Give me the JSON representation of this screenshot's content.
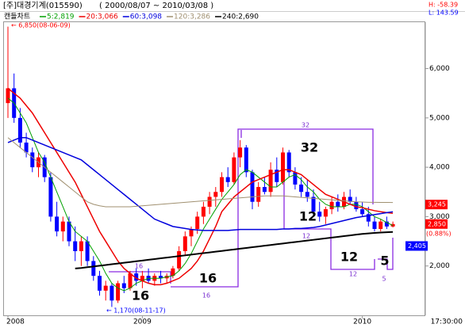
{
  "chart_data": {
    "type": "candlestick",
    "title": "[주]대경기계(015590)",
    "date_range": "( 2000/08/07 ~ 2010/03/08 )",
    "chart_label": "캔들차트",
    "stat_high": "H: -58.39",
    "stat_low": "L: 143.59",
    "time_label": "17:30:00",
    "max_note": "← 6,850(08-06-09)",
    "min_note": "← 1,170(08-11-17)",
    "up_color": "#ff0000",
    "down_color": "#0000ff",
    "categories": [
      "2008",
      null,
      null,
      null,
      null,
      null,
      null,
      null,
      null,
      null,
      null,
      null,
      null,
      null,
      null,
      null,
      null,
      null,
      null,
      null,
      null,
      null,
      "2009",
      null,
      null,
      null,
      null,
      null,
      null,
      null,
      null,
      null,
      null,
      null,
      null,
      null,
      null,
      null,
      null,
      null,
      null,
      null,
      null,
      null,
      null,
      null,
      null,
      null,
      null,
      null,
      null,
      null,
      null,
      null,
      null,
      null,
      null,
      null,
      "2010",
      null,
      null,
      null,
      null,
      null
    ],
    "open": [
      5300,
      5600,
      5000,
      4500,
      4300,
      4000,
      4200,
      3800,
      3000,
      2700,
      2900,
      2500,
      2300,
      2500,
      2100,
      1800,
      1500,
      1600,
      1300,
      1650,
      1550,
      1850,
      1700,
      1800,
      1700,
      1800,
      1750,
      1800,
      1950,
      2300,
      2600,
      2750,
      3000,
      3200,
      3400,
      3500,
      3800,
      3700,
      4200,
      4400,
      3900,
      3300,
      3600,
      3500,
      3950,
      3700,
      4300,
      3900,
      3650,
      3500,
      3400,
      3100,
      3000,
      3150,
      3300,
      3200,
      3400,
      3300,
      3150,
      3050,
      2900,
      2750,
      2900,
      2800
    ],
    "high": [
      6850,
      5900,
      5200,
      4700,
      4400,
      4300,
      4250,
      3900,
      3300,
      3000,
      3000,
      2800,
      2600,
      2600,
      2200,
      1900,
      1700,
      1650,
      1700,
      1800,
      1900,
      1950,
      1900,
      1950,
      1850,
      1900,
      1850,
      2000,
      2400,
      2700,
      2800,
      3100,
      3300,
      3500,
      3600,
      3900,
      4000,
      4300,
      4550,
      4450,
      3950,
      3700,
      3800,
      4100,
      4200,
      4400,
      4350,
      4000,
      3800,
      3750,
      3550,
      3300,
      3200,
      3400,
      3450,
      3500,
      3550,
      3400,
      3300,
      3200,
      3000,
      2950,
      3000,
      2900
    ],
    "low": [
      5000,
      4900,
      4400,
      4200,
      3900,
      3800,
      3700,
      2900,
      2600,
      2500,
      2400,
      2100,
      2000,
      2000,
      1700,
      1400,
      1300,
      1170,
      1250,
      1450,
      1500,
      1600,
      1550,
      1650,
      1600,
      1650,
      1650,
      1750,
      1900,
      2200,
      2400,
      2650,
      2850,
      3050,
      3200,
      3400,
      3600,
      3650,
      4000,
      3800,
      3150,
      3200,
      3450,
      3400,
      3600,
      3650,
      3800,
      3550,
      3400,
      3300,
      3000,
      2900,
      2850,
      3050,
      3100,
      3150,
      3250,
      3100,
      3000,
      2800,
      2700,
      2700,
      2750,
      2780
    ],
    "close": [
      5600,
      5000,
      4500,
      4300,
      4000,
      4200,
      3800,
      3000,
      2700,
      2900,
      2500,
      2300,
      2500,
      2100,
      1800,
      1500,
      1600,
      1300,
      1650,
      1550,
      1850,
      1700,
      1800,
      1700,
      1800,
      1750,
      1800,
      1950,
      2300,
      2600,
      2750,
      3000,
      3200,
      3400,
      3500,
      3800,
      3700,
      4200,
      4400,
      3900,
      3300,
      3600,
      3500,
      3950,
      3700,
      4300,
      3900,
      3650,
      3500,
      3400,
      3100,
      3000,
      3150,
      3300,
      3200,
      3400,
      3300,
      3150,
      3050,
      2900,
      2750,
      2900,
      2800,
      2850
    ],
    "series": [
      {
        "name": "5:2,819",
        "color": "#00a000",
        "width": 1,
        "values": [
          5400,
          5300,
          5100,
          4900,
          4600,
          4300,
          4100,
          3800,
          3500,
          3200,
          2900,
          2700,
          2600,
          2500,
          2300,
          2100,
          1850,
          1650,
          1550,
          1500,
          1550,
          1650,
          1700,
          1750,
          1750,
          1750,
          1780,
          1800,
          1900,
          2050,
          2250,
          2500,
          2750,
          2950,
          3150,
          3350,
          3500,
          3650,
          3850,
          3950,
          3900,
          3800,
          3700,
          3600,
          3600,
          3700,
          3800,
          3850,
          3750,
          3600,
          3500,
          3350,
          3250,
          3200,
          3200,
          3200,
          3250,
          3250,
          3200,
          3100,
          3000,
          2950,
          2880,
          2819
        ]
      },
      {
        "name": "20:3,066",
        "color": "#ee0000",
        "width": 1.5,
        "values": [
          5600,
          5500,
          5400,
          5250,
          5100,
          4900,
          4700,
          4500,
          4300,
          4100,
          3900,
          3700,
          3450,
          3200,
          2950,
          2700,
          2500,
          2300,
          2100,
          1950,
          1850,
          1750,
          1700,
          1650,
          1620,
          1620,
          1650,
          1700,
          1750,
          1850,
          1950,
          2100,
          2300,
          2550,
          2800,
          3100,
          3250,
          3400,
          3500,
          3600,
          3700,
          3750,
          3800,
          3850,
          3900,
          3950,
          3950,
          3900,
          3850,
          3750,
          3650,
          3550,
          3450,
          3400,
          3350,
          3300,
          3250,
          3200,
          3180,
          3150,
          3120,
          3100,
          3080,
          3066
        ]
      },
      {
        "name": "60:3,098",
        "color": "#0000dd",
        "width": 1.5,
        "values": [
          4500,
          4550,
          4600,
          4600,
          4550,
          4500,
          4450,
          4400,
          4350,
          4300,
          4250,
          4200,
          4150,
          4050,
          3950,
          3850,
          3750,
          3650,
          3550,
          3450,
          3350,
          3250,
          3150,
          3050,
          2950,
          2900,
          2850,
          2800,
          2780,
          2760,
          2740,
          2730,
          2720,
          2720,
          2720,
          2720,
          2720,
          2730,
          2740,
          2740,
          2740,
          2740,
          2740,
          2740,
          2740,
          2750,
          2750,
          2760,
          2760,
          2770,
          2780,
          2800,
          2830,
          2860,
          2890,
          2920,
          2950,
          2980,
          3000,
          3020,
          3040,
          3060,
          3080,
          3098
        ]
      },
      {
        "name": "120:3,286",
        "color": "#a09070",
        "width": 1,
        "values": [
          4600,
          4500,
          4400,
          4300,
          4200,
          4100,
          4000,
          3900,
          3800,
          3700,
          3600,
          3500,
          3400,
          3300,
          3250,
          3220,
          3200,
          3200,
          3200,
          3200,
          3200,
          3210,
          3220,
          3230,
          3240,
          3250,
          3260,
          3270,
          3280,
          3290,
          3300,
          3310,
          3320,
          3330,
          3340,
          3350,
          3360,
          3370,
          3380,
          3390,
          3400,
          3410,
          3420,
          3420,
          3420,
          3420,
          3410,
          3400,
          3390,
          3380,
          3370,
          3360,
          3350,
          3340,
          3330,
          3320,
          3310,
          3300,
          3295,
          3290,
          3290,
          3288,
          3287,
          3286
        ]
      },
      {
        "name": "240:2,690",
        "color": "#000000",
        "width": 2,
        "values": [
          null,
          null,
          null,
          null,
          null,
          null,
          null,
          null,
          null,
          null,
          null,
          1950,
          1960,
          1975,
          1990,
          2005,
          2020,
          2035,
          2050,
          2065,
          2080,
          2095,
          2110,
          2125,
          2140,
          2155,
          2170,
          2185,
          2200,
          2215,
          2230,
          2245,
          2260,
          2275,
          2290,
          2305,
          2320,
          2335,
          2350,
          2365,
          2380,
          2395,
          2410,
          2425,
          2440,
          2455,
          2470,
          2485,
          2500,
          2515,
          2530,
          2545,
          2560,
          2575,
          2590,
          2605,
          2620,
          2635,
          2650,
          2660,
          2670,
          2678,
          2684,
          2690
        ]
      }
    ],
    "ylim": [
      1000,
      7100
    ],
    "yticks": [
      {
        "value": 2000,
        "label": "2,000"
      },
      {
        "value": 3000,
        "label": "3,000"
      },
      {
        "value": 4000,
        "label": "4,000"
      },
      {
        "value": 5000,
        "label": "5,000"
      },
      {
        "value": 6000,
        "label": "6,000"
      }
    ],
    "grid": false,
    "price_tags": [
      {
        "value": 3245,
        "label": "3,245",
        "color": "#ff0000"
      },
      {
        "value": 2850,
        "label": "2,850",
        "color": "#ff0000"
      },
      {
        "value": 2405,
        "label": "2,405",
        "color": "#0000ff"
      }
    ],
    "change_label": "(0.88%)",
    "cycle_big": [
      "16",
      "16",
      "32",
      "12",
      "12",
      "5"
    ],
    "cycle_small": [
      "16",
      "16",
      "32",
      "12",
      "12",
      "5"
    ]
  }
}
